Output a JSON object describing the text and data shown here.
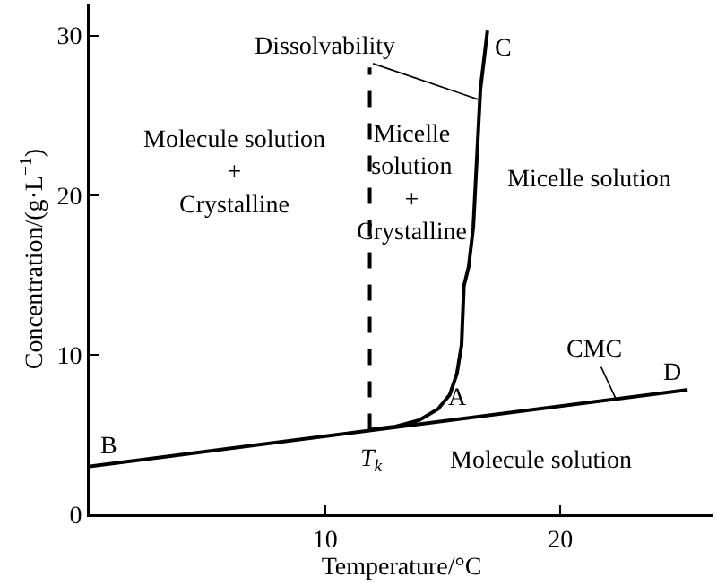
{
  "chart_data": {
    "type": "line",
    "xlabel": "Temperature/°C",
    "ylabel": "Concentration/(g·L$^{−1}$)",
    "xlim": [
      0,
      26.5
    ],
    "ylim": [
      0,
      32
    ],
    "xticks": [
      {
        "value": 0,
        "label": null
      },
      10,
      20
    ],
    "yticks": [
      0,
      10,
      20,
      30
    ],
    "grid": false,
    "marker": "none",
    "series": [
      {
        "color": "#000000",
        "line_style": "solid",
        "x": [
          0,
          25.4
        ],
        "values": [
          3.0,
          7.8
        ]
      },
      {
        "color": "#000000",
        "line_style": "solid",
        "x": [
          11.9,
          13.0,
          14.0,
          14.8,
          15.3,
          15.6,
          15.8,
          15.9,
          16.1,
          16.3,
          16.6,
          16.9
        ],
        "values": [
          5.3,
          5.5,
          5.9,
          6.6,
          7.5,
          8.8,
          10.6,
          14.3,
          15.5,
          18.0,
          26.6,
          30.3
        ]
      },
      {
        "color": "#000000",
        "line_style": "dashed",
        "x": [
          11.9,
          11.9
        ],
        "values": [
          5.3,
          28
        ]
      }
    ],
    "annotations": [
      {
        "text": "Dissolvability",
        "x": 16.5,
        "y": 26.0
      },
      "C",
      "Molecule solution\n+\nCrystalline",
      "Micelle\nsolution\n+\nCrystalline",
      "Micelle solution",
      {
        "text": "CMC",
        "x": 22.4,
        "y": 7.1
      },
      "D",
      "A",
      "B",
      "T$_{k}$",
      "Molecule solution"
    ]
  }
}
